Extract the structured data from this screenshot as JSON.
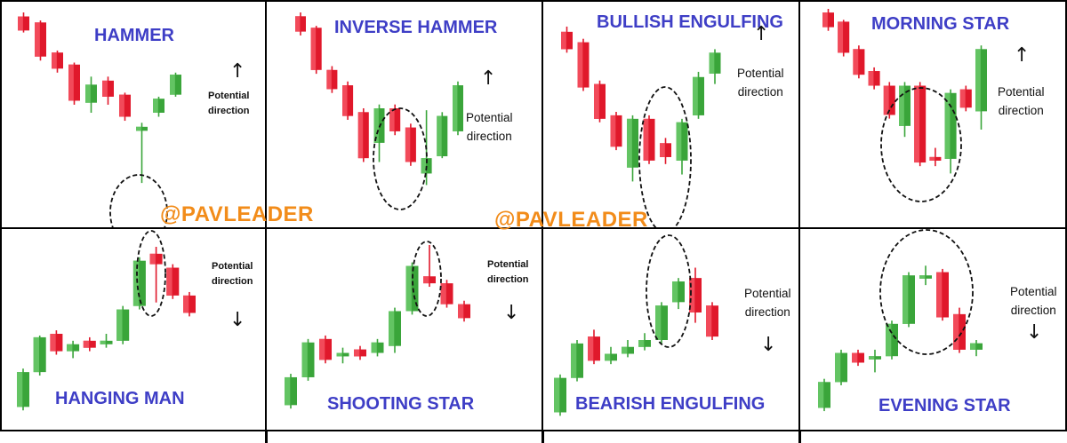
{
  "watermark": "@PAVLEADER",
  "colors": {
    "bull": "#3aa53a",
    "bull_light": "#63c463",
    "bear": "#e0182b",
    "bear_light": "#f24a5a",
    "title": "#3e3ec6",
    "watermark": "#f28c1a"
  },
  "direction_label_line1": "Potential",
  "direction_label_line2": "direction",
  "chart_data": [
    {
      "type": "candlestick",
      "title": "HAMMER",
      "direction": "up",
      "arrow_glyph": "↑",
      "highlight_candle_index": 7,
      "candles": [
        {
          "o": 98,
          "h": 100,
          "l": 90,
          "c": 91
        },
        {
          "o": 95,
          "h": 96,
          "l": 76,
          "c": 78
        },
        {
          "o": 80,
          "h": 81,
          "l": 70,
          "c": 72
        },
        {
          "o": 74,
          "h": 75,
          "l": 54,
          "c": 56
        },
        {
          "o": 55,
          "h": 68,
          "l": 50,
          "c": 64
        },
        {
          "o": 66,
          "h": 68,
          "l": 54,
          "c": 58
        },
        {
          "o": 59,
          "h": 60,
          "l": 46,
          "c": 48
        },
        {
          "o": 41,
          "h": 45,
          "l": 15,
          "c": 43
        },
        {
          "o": 50,
          "h": 58,
          "l": 48,
          "c": 57
        },
        {
          "o": 59,
          "h": 70,
          "l": 58,
          "c": 69
        }
      ]
    },
    {
      "type": "candlestick",
      "title": "INVERSE HAMMER",
      "direction": "up",
      "arrow_glyph": "↑",
      "highlight_candle_index": 7,
      "candles": [
        {
          "o": 98,
          "h": 100,
          "l": 88,
          "c": 90
        },
        {
          "o": 92,
          "h": 93,
          "l": 68,
          "c": 70
        },
        {
          "o": 70,
          "h": 72,
          "l": 58,
          "c": 60
        },
        {
          "o": 62,
          "h": 64,
          "l": 44,
          "c": 46
        },
        {
          "o": 48,
          "h": 50,
          "l": 22,
          "c": 24
        },
        {
          "o": 32,
          "h": 52,
          "l": 22,
          "c": 50
        },
        {
          "o": 50,
          "h": 52,
          "l": 36,
          "c": 38
        },
        {
          "o": 40,
          "h": 42,
          "l": 20,
          "c": 22
        },
        {
          "o": 16,
          "h": 49,
          "l": 10,
          "c": 24
        },
        {
          "o": 25,
          "h": 48,
          "l": 24,
          "c": 46
        },
        {
          "o": 38,
          "h": 64,
          "l": 36,
          "c": 62
        }
      ]
    },
    {
      "type": "candlestick",
      "title": "BULLISH ENGULFING",
      "direction": "up",
      "arrow_glyph": "↑",
      "highlight_candle_index": 7,
      "candles": [
        {
          "o": 96,
          "h": 99,
          "l": 84,
          "c": 86
        },
        {
          "o": 90,
          "h": 92,
          "l": 62,
          "c": 64
        },
        {
          "o": 66,
          "h": 68,
          "l": 44,
          "c": 46
        },
        {
          "o": 48,
          "h": 50,
          "l": 28,
          "c": 30
        },
        {
          "o": 18,
          "h": 48,
          "l": 10,
          "c": 46
        },
        {
          "o": 46,
          "h": 48,
          "l": 20,
          "c": 22
        },
        {
          "o": 32,
          "h": 35,
          "l": 20,
          "c": 24
        },
        {
          "o": 22,
          "h": 46,
          "l": 14,
          "c": 44
        },
        {
          "o": 48,
          "h": 73,
          "l": 46,
          "c": 70
        },
        {
          "o": 72,
          "h": 86,
          "l": 66,
          "c": 84
        }
      ]
    },
    {
      "type": "candlestick",
      "title": "MORNING STAR",
      "direction": "up",
      "arrow_glyph": "↑",
      "highlight_candle_index": 6,
      "candles": [
        {
          "o": 98,
          "h": 100,
          "l": 88,
          "c": 90
        },
        {
          "o": 93,
          "h": 94,
          "l": 74,
          "c": 76
        },
        {
          "o": 78,
          "h": 80,
          "l": 62,
          "c": 64
        },
        {
          "o": 66,
          "h": 68,
          "l": 56,
          "c": 58
        },
        {
          "o": 58,
          "h": 60,
          "l": 40,
          "c": 42
        },
        {
          "o": 36,
          "h": 60,
          "l": 30,
          "c": 58
        },
        {
          "o": 58,
          "h": 60,
          "l": 14,
          "c": 16
        },
        {
          "o": 19,
          "h": 24,
          "l": 14,
          "c": 17
        },
        {
          "o": 18,
          "h": 56,
          "l": 10,
          "c": 54
        },
        {
          "o": 56,
          "h": 58,
          "l": 44,
          "c": 46
        },
        {
          "o": 44,
          "h": 80,
          "l": 34,
          "c": 78
        }
      ]
    },
    {
      "type": "candlestick",
      "title": "HANGING MAN",
      "direction": "down",
      "arrow_glyph": "↓",
      "highlight_candle_index": 8,
      "candles": [
        {
          "o": 8,
          "h": 30,
          "l": 6,
          "c": 28
        },
        {
          "o": 28,
          "h": 49,
          "l": 26,
          "c": 48
        },
        {
          "o": 50,
          "h": 52,
          "l": 38,
          "c": 40
        },
        {
          "o": 40,
          "h": 46,
          "l": 36,
          "c": 44
        },
        {
          "o": 46,
          "h": 48,
          "l": 40,
          "c": 42
        },
        {
          "o": 44,
          "h": 50,
          "l": 42,
          "c": 46
        },
        {
          "o": 46,
          "h": 66,
          "l": 44,
          "c": 64
        },
        {
          "o": 66,
          "h": 94,
          "l": 64,
          "c": 92
        },
        {
          "o": 96,
          "h": 100,
          "l": 68,
          "c": 90
        },
        {
          "o": 88,
          "h": 90,
          "l": 70,
          "c": 72
        },
        {
          "o": 72,
          "h": 74,
          "l": 60,
          "c": 62
        }
      ]
    },
    {
      "type": "candlestick",
      "title": "SHOOTING STAR",
      "direction": "down",
      "arrow_glyph": "↓",
      "highlight_candle_index": 8,
      "candles": [
        {
          "o": 8,
          "h": 26,
          "l": 6,
          "c": 24
        },
        {
          "o": 24,
          "h": 46,
          "l": 22,
          "c": 44
        },
        {
          "o": 46,
          "h": 48,
          "l": 32,
          "c": 34
        },
        {
          "o": 36,
          "h": 41,
          "l": 32,
          "c": 38
        },
        {
          "o": 40,
          "h": 42,
          "l": 34,
          "c": 36
        },
        {
          "o": 38,
          "h": 46,
          "l": 36,
          "c": 44
        },
        {
          "o": 42,
          "h": 64,
          "l": 38,
          "c": 62
        },
        {
          "o": 62,
          "h": 90,
          "l": 60,
          "c": 88
        },
        {
          "o": 82,
          "h": 100,
          "l": 76,
          "c": 78
        },
        {
          "o": 78,
          "h": 80,
          "l": 64,
          "c": 66
        },
        {
          "o": 66,
          "h": 68,
          "l": 56,
          "c": 58
        }
      ]
    },
    {
      "type": "candlestick",
      "title": "BEARISH ENGULFING",
      "direction": "down",
      "arrow_glyph": "↓",
      "highlight_candle_index": 7,
      "candles": [
        {
          "o": 8,
          "h": 30,
          "l": 6,
          "c": 28
        },
        {
          "o": 28,
          "h": 50,
          "l": 26,
          "c": 48
        },
        {
          "o": 52,
          "h": 56,
          "l": 36,
          "c": 38
        },
        {
          "o": 38,
          "h": 46,
          "l": 36,
          "c": 42
        },
        {
          "o": 42,
          "h": 50,
          "l": 40,
          "c": 46
        },
        {
          "o": 46,
          "h": 54,
          "l": 44,
          "c": 50
        },
        {
          "o": 50,
          "h": 72,
          "l": 48,
          "c": 70
        },
        {
          "o": 72,
          "h": 86,
          "l": 68,
          "c": 84
        },
        {
          "o": 86,
          "h": 92,
          "l": 60,
          "c": 66
        },
        {
          "o": 70,
          "h": 72,
          "l": 50,
          "c": 52
        }
      ]
    },
    {
      "type": "candlestick",
      "title": "EVENING STAR",
      "direction": "down",
      "arrow_glyph": "↓",
      "highlight_candle_index": 8,
      "candles": [
        {
          "o": 8,
          "h": 26,
          "l": 6,
          "c": 24
        },
        {
          "o": 24,
          "h": 44,
          "l": 22,
          "c": 42
        },
        {
          "o": 42,
          "h": 44,
          "l": 34,
          "c": 36
        },
        {
          "o": 38,
          "h": 44,
          "l": 30,
          "c": 40
        },
        {
          "o": 40,
          "h": 62,
          "l": 38,
          "c": 60
        },
        {
          "o": 60,
          "h": 92,
          "l": 58,
          "c": 90
        },
        {
          "o": 88,
          "h": 96,
          "l": 84,
          "c": 90
        },
        {
          "o": 92,
          "h": 94,
          "l": 62,
          "c": 64
        },
        {
          "o": 66,
          "h": 70,
          "l": 42,
          "c": 44
        },
        {
          "o": 44,
          "h": 50,
          "l": 40,
          "c": 48
        }
      ]
    }
  ]
}
